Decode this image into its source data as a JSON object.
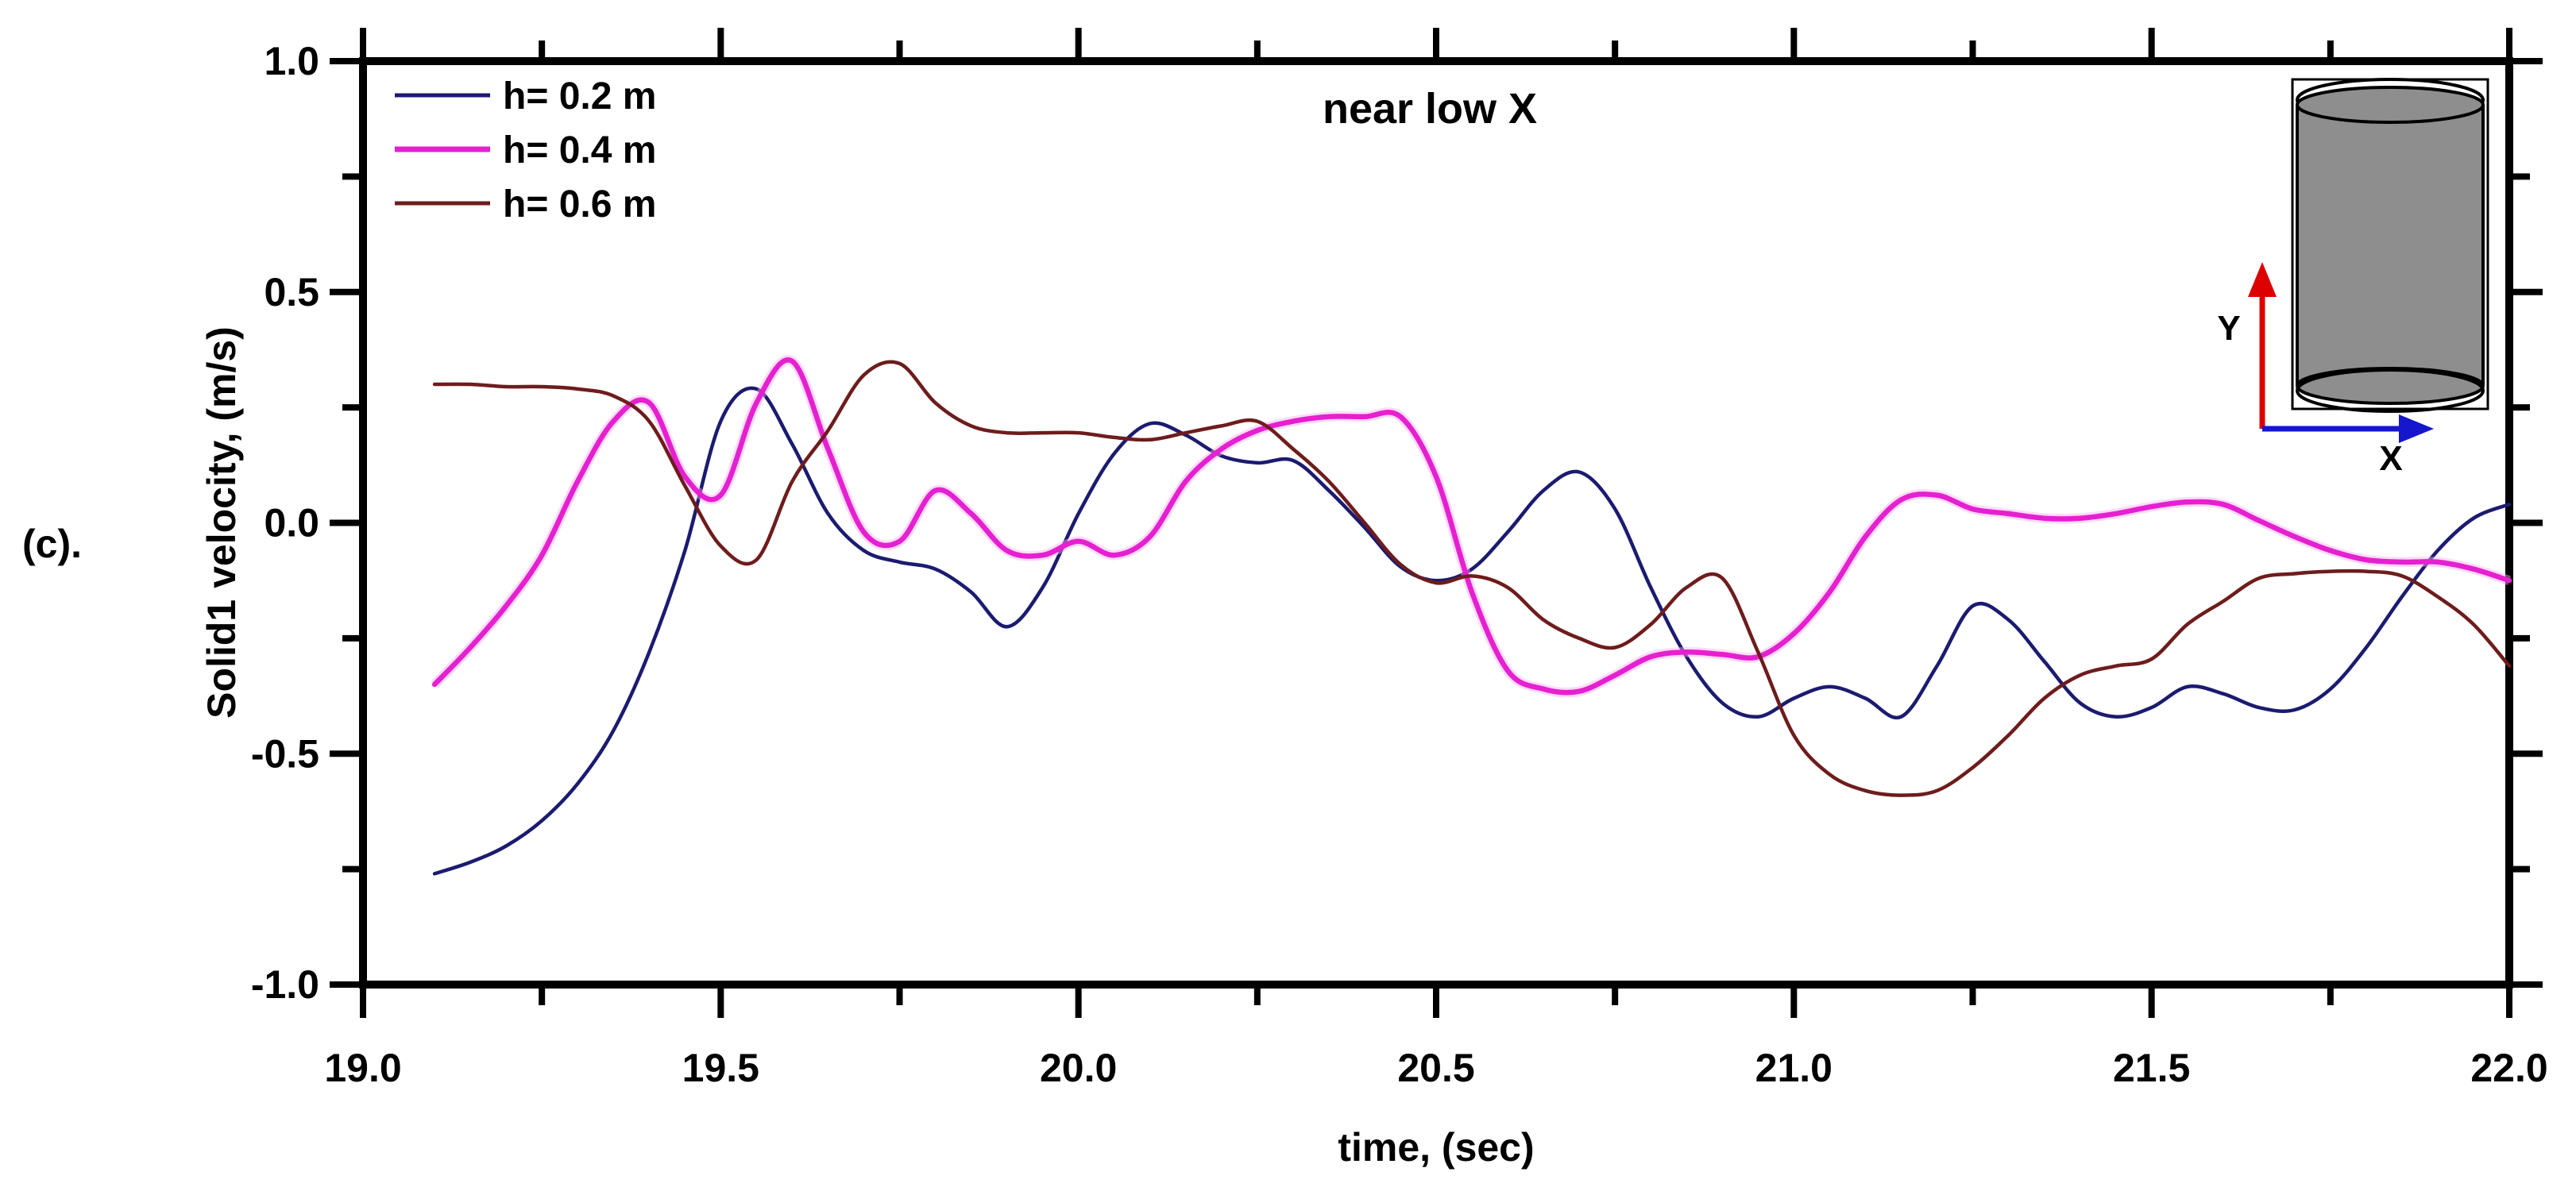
{
  "figure": {
    "panel_label": "(c).",
    "background": "#ffffff",
    "axis_color": "#000000"
  },
  "chart_data": {
    "type": "line",
    "title": "near low X",
    "xlabel": "time, (sec)",
    "ylabel": "Solid1 velocity, (m/s)",
    "xlim": [
      19.0,
      22.0
    ],
    "ylim": [
      -1.0,
      1.0
    ],
    "grid": false,
    "legend_position": "top-left",
    "x_major_ticks": [
      19.0,
      19.5,
      20.0,
      20.5,
      21.0,
      21.5,
      22.0
    ],
    "x_major_tick_labels": [
      "19.0",
      "19.5",
      "20.0",
      "20.5",
      "21.0",
      "21.5",
      "22.0"
    ],
    "x_minor_ticks": [
      19.25,
      19.75,
      20.25,
      20.75,
      21.25,
      21.75
    ],
    "y_major_ticks": [
      1.0,
      0.5,
      0.0,
      -0.5,
      -1.0
    ],
    "y_major_tick_labels": [
      "1.0",
      "0.5",
      "0.0",
      "-0.5",
      "-1.0"
    ],
    "y_minor_ticks": [
      0.75,
      0.25,
      -0.25,
      -0.75
    ],
    "t": [
      19.1,
      19.15,
      19.2,
      19.25,
      19.3,
      19.35,
      19.4,
      19.45,
      19.5,
      19.55,
      19.6,
      19.65,
      19.7,
      19.75,
      19.8,
      19.85,
      19.9,
      19.95,
      20.0,
      20.05,
      20.1,
      20.15,
      20.2,
      20.25,
      20.3,
      20.35,
      20.4,
      20.45,
      20.5,
      20.55,
      20.6,
      20.65,
      20.7,
      20.75,
      20.8,
      20.85,
      20.9,
      20.95,
      21.0,
      21.05,
      21.1,
      21.15,
      21.2,
      21.25,
      21.3,
      21.35,
      21.4,
      21.45,
      21.5,
      21.55,
      21.6,
      21.65,
      21.7,
      21.75,
      21.8,
      21.85,
      21.9,
      21.95,
      22.0
    ],
    "series": [
      {
        "name": "h= 0.2 m",
        "color": "#1b1b70",
        "width": 4.5,
        "values": [
          -0.76,
          -0.735,
          -0.7,
          -0.645,
          -0.565,
          -0.45,
          -0.28,
          -0.06,
          0.22,
          0.29,
          0.17,
          0.02,
          -0.06,
          -0.085,
          -0.1,
          -0.15,
          -0.225,
          -0.14,
          0.02,
          0.15,
          0.215,
          0.19,
          0.145,
          0.13,
          0.135,
          0.07,
          -0.01,
          -0.095,
          -0.125,
          -0.1,
          -0.02,
          0.07,
          0.11,
          0.03,
          -0.14,
          -0.29,
          -0.39,
          -0.42,
          -0.38,
          -0.355,
          -0.38,
          -0.42,
          -0.31,
          -0.18,
          -0.21,
          -0.3,
          -0.39,
          -0.42,
          -0.4,
          -0.355,
          -0.37,
          -0.4,
          -0.405,
          -0.36,
          -0.27,
          -0.16,
          -0.06,
          0.01,
          0.04
        ]
      },
      {
        "name": "h= 0.4 m",
        "color": "#e520d0",
        "halo": "#ffaef2",
        "width": 6.5,
        "values": [
          -0.35,
          -0.27,
          -0.18,
          -0.07,
          0.09,
          0.22,
          0.26,
          0.1,
          0.06,
          0.26,
          0.35,
          0.16,
          -0.02,
          -0.04,
          0.07,
          0.02,
          -0.06,
          -0.07,
          -0.04,
          -0.07,
          -0.03,
          0.09,
          0.16,
          0.2,
          0.22,
          0.23,
          0.23,
          0.23,
          0.1,
          -0.15,
          -0.32,
          -0.36,
          -0.365,
          -0.33,
          -0.29,
          -0.28,
          -0.285,
          -0.29,
          -0.24,
          -0.15,
          -0.03,
          0.05,
          0.06,
          0.03,
          0.02,
          0.01,
          0.01,
          0.02,
          0.035,
          0.045,
          0.04,
          0.005,
          -0.03,
          -0.06,
          -0.08,
          -0.085,
          -0.085,
          -0.1,
          -0.125
        ]
      },
      {
        "name": "h= 0.6 m",
        "color": "#6e1c1c",
        "width": 4.5,
        "values": [
          0.3,
          0.3,
          0.295,
          0.295,
          0.29,
          0.275,
          0.22,
          0.08,
          -0.05,
          -0.08,
          0.09,
          0.2,
          0.32,
          0.345,
          0.26,
          0.21,
          0.195,
          0.195,
          0.195,
          0.185,
          0.18,
          0.195,
          0.21,
          0.22,
          0.16,
          0.09,
          0.0,
          -0.09,
          -0.13,
          -0.115,
          -0.14,
          -0.21,
          -0.25,
          -0.27,
          -0.22,
          -0.14,
          -0.12,
          -0.28,
          -0.46,
          -0.545,
          -0.58,
          -0.59,
          -0.58,
          -0.53,
          -0.46,
          -0.38,
          -0.33,
          -0.31,
          -0.295,
          -0.22,
          -0.17,
          -0.12,
          -0.11,
          -0.105,
          -0.105,
          -0.115,
          -0.16,
          -0.22,
          -0.31
        ]
      }
    ],
    "inset": {
      "description": "vertical cylinder schematic with coordinate axes",
      "x_axis_label": "X",
      "y_axis_label": "Y",
      "x_axis_color": "#1616cc",
      "y_axis_color": "#dd0000",
      "cylinder_fill": "#8e8e8e",
      "outline_color": "#000000"
    }
  }
}
